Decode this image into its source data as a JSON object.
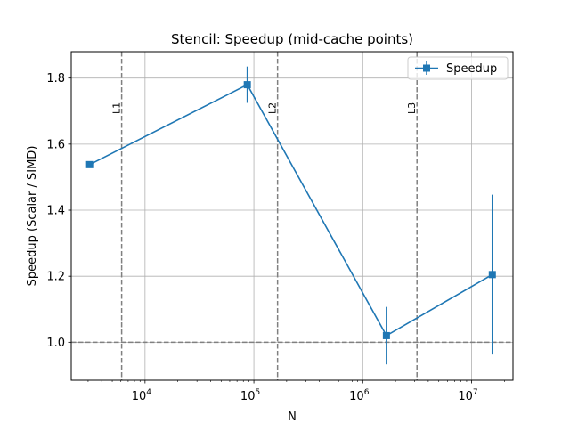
{
  "chart_data": {
    "type": "line",
    "title": "Stencil: Speedup (mid-cache points)",
    "xlabel": "N",
    "ylabel": "Speedup (Scalar / SIMD)",
    "xscale": "log",
    "xlim": [
      2100,
      24000000
    ],
    "ylim": [
      0.885,
      1.88
    ],
    "grid": true,
    "legend_position": "top-right",
    "x_ticks": [
      {
        "value": 10000,
        "base": "10",
        "exp": "4"
      },
      {
        "value": 100000,
        "base": "10",
        "exp": "5"
      },
      {
        "value": 1000000,
        "base": "10",
        "exp": "6"
      },
      {
        "value": 10000000,
        "base": "10",
        "exp": "7"
      }
    ],
    "y_ticks": [
      {
        "value": 1.0,
        "label": "1.0"
      },
      {
        "value": 1.2,
        "label": "1.2"
      },
      {
        "value": 1.4,
        "label": "1.4"
      },
      {
        "value": 1.6,
        "label": "1.6"
      },
      {
        "value": 1.8,
        "label": "1.8"
      }
    ],
    "series": [
      {
        "name": "Speedup",
        "color": "#1f77b4",
        "marker": "square",
        "points": [
          {
            "x": 3100,
            "y": 1.538,
            "err": 0.0
          },
          {
            "x": 87000,
            "y": 1.78,
            "err": 0.055
          },
          {
            "x": 1650000,
            "y": 1.02,
            "err": 0.087
          },
          {
            "x": 15500000,
            "y": 1.205,
            "err": 0.242
          }
        ]
      }
    ],
    "vertical_lines": [
      {
        "x": 6100,
        "label": "L1"
      },
      {
        "x": 165000,
        "label": "L2"
      },
      {
        "x": 3150000,
        "label": "L3"
      }
    ],
    "reference_line": {
      "y": 1.0
    },
    "colors": {
      "series": "#1f77b4",
      "grid": "#b0b0b0",
      "reference": "#808080"
    }
  }
}
